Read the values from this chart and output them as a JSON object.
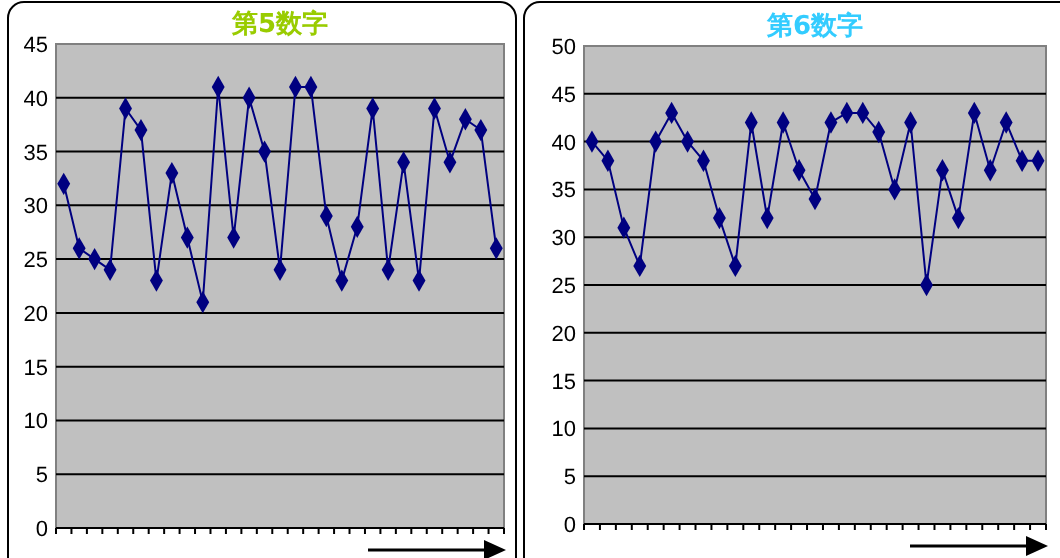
{
  "chart_data": [
    {
      "type": "line",
      "title": "第5数字",
      "categories": [
        null,
        null,
        null,
        null,
        null,
        null,
        null,
        null,
        null,
        null,
        null,
        null,
        null,
        null,
        null,
        null,
        null,
        null,
        null,
        null,
        null,
        null,
        null,
        null,
        null,
        null,
        null,
        null,
        null
      ],
      "series": [
        {
          "color": "#000080",
          "values": [
            32,
            26,
            25,
            24,
            39,
            37,
            23,
            33,
            27,
            21,
            41,
            27,
            40,
            35,
            24,
            41,
            41,
            29,
            23,
            28,
            39,
            24,
            34,
            23,
            39,
            34,
            38,
            37,
            26
          ]
        }
      ],
      "ylim": [
        0,
        45
      ],
      "yticks": [
        0,
        5,
        10,
        15,
        20,
        25,
        30,
        35,
        40,
        45
      ],
      "grid": "y",
      "marker": "diamond"
    },
    {
      "type": "line",
      "title": "第6数字",
      "categories": [
        null,
        null,
        null,
        null,
        null,
        null,
        null,
        null,
        null,
        null,
        null,
        null,
        null,
        null,
        null,
        null,
        null,
        null,
        null,
        null,
        null,
        null,
        null,
        null,
        null,
        null,
        null,
        null,
        null
      ],
      "series": [
        {
          "color": "#000080",
          "values": [
            40,
            38,
            31,
            27,
            40,
            43,
            40,
            38,
            32,
            27,
            42,
            32,
            42,
            37,
            34,
            42,
            43,
            43,
            41,
            35,
            42,
            25,
            37,
            32,
            43,
            37,
            42,
            38,
            38
          ]
        }
      ],
      "ylim": [
        0,
        50
      ],
      "yticks": [
        0,
        5,
        10,
        15,
        20,
        25,
        30,
        35,
        40,
        45,
        50
      ],
      "grid": "y",
      "marker": "diamond"
    }
  ]
}
